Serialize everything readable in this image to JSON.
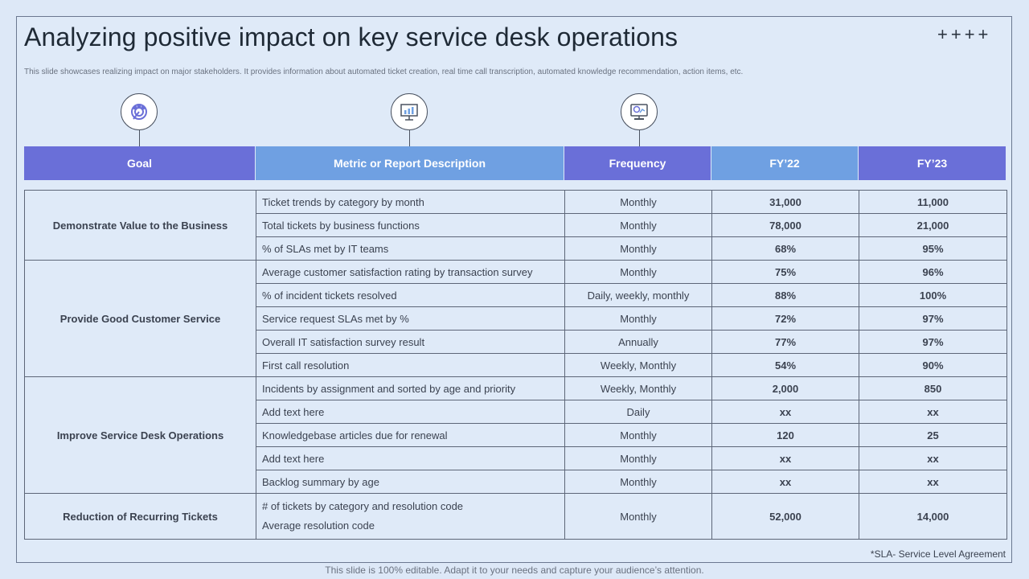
{
  "slide": {
    "title": "Analyzing positive impact on key service desk operations",
    "plus_marks": "++++",
    "subtitle": "This slide showcases realizing impact on major stakeholders. It provides information about automated ticket creation, real time call transcription, automated knowledge recommendation, action items, etc."
  },
  "icons": [
    "target-people-icon",
    "presentation-chart-icon",
    "monitor-analytics-icon"
  ],
  "colors": {
    "header_dark": "#6a6fd8",
    "header_light": "#6fa0e2",
    "fy23_green": "#1aa653",
    "background": "#dde8f7"
  },
  "table": {
    "headers": [
      "Goal",
      "Metric or Report Description",
      "Frequency",
      "FY’22",
      "FY’23"
    ],
    "groups": [
      {
        "goal": "Demonstrate Value to the Business",
        "rows": [
          {
            "metric": "Ticket trends by category by month",
            "frequency": "Monthly",
            "fy22": "31,000",
            "fy23": "11,000"
          },
          {
            "metric": "Total tickets by business functions",
            "frequency": "Monthly",
            "fy22": "78,000",
            "fy23": "21,000"
          },
          {
            "metric": "% of SLAs met by IT teams",
            "frequency": "Monthly",
            "fy22": "68%",
            "fy23": "95%"
          }
        ]
      },
      {
        "goal": "Provide Good Customer Service",
        "rows": [
          {
            "metric": "Average customer satisfaction rating by transaction survey",
            "frequency": "Monthly",
            "fy22": "75%",
            "fy23": "96%"
          },
          {
            "metric": "% of incident tickets resolved",
            "frequency": "Daily, weekly, monthly",
            "fy22": "88%",
            "fy23": "100%"
          },
          {
            "metric": "Service request SLAs met by %",
            "frequency": "Monthly",
            "fy22": "72%",
            "fy23": "97%"
          },
          {
            "metric": "Overall IT satisfaction survey result",
            "frequency": "Annually",
            "fy22": "77%",
            "fy23": "97%"
          },
          {
            "metric": "First call resolution",
            "frequency": "Weekly, Monthly",
            "fy22": "54%",
            "fy23": "90%"
          }
        ]
      },
      {
        "goal": "Improve Service Desk Operations",
        "rows": [
          {
            "metric": "Incidents by assignment and sorted by age and priority",
            "frequency": "Weekly, Monthly",
            "fy22": "2,000",
            "fy23": "850"
          },
          {
            "metric": "Add text here",
            "frequency": "Daily",
            "fy22": "xx",
            "fy23": "xx"
          },
          {
            "metric": "Knowledgebase articles due for renewal",
            "frequency": "Monthly",
            "fy22": "120",
            "fy23": "25"
          },
          {
            "metric": "Add text here",
            "frequency": "Monthly",
            "fy22": "xx",
            "fy23": "xx"
          },
          {
            "metric": "Backlog summary by age",
            "frequency": "Monthly",
            "fy22": "xx",
            "fy23": "xx"
          }
        ]
      },
      {
        "goal": "Reduction of Recurring Tickets",
        "rows": [
          {
            "metric": "# of tickets by category and resolution code",
            "metric_line2": "Average resolution code",
            "frequency": "Monthly",
            "fy22": "52,000",
            "fy23": "14,000"
          }
        ]
      }
    ]
  },
  "footnote": "*SLA- Service Level Agreement",
  "editable_note": "This slide is 100% editable. Adapt it to your needs and capture your audience’s attention."
}
